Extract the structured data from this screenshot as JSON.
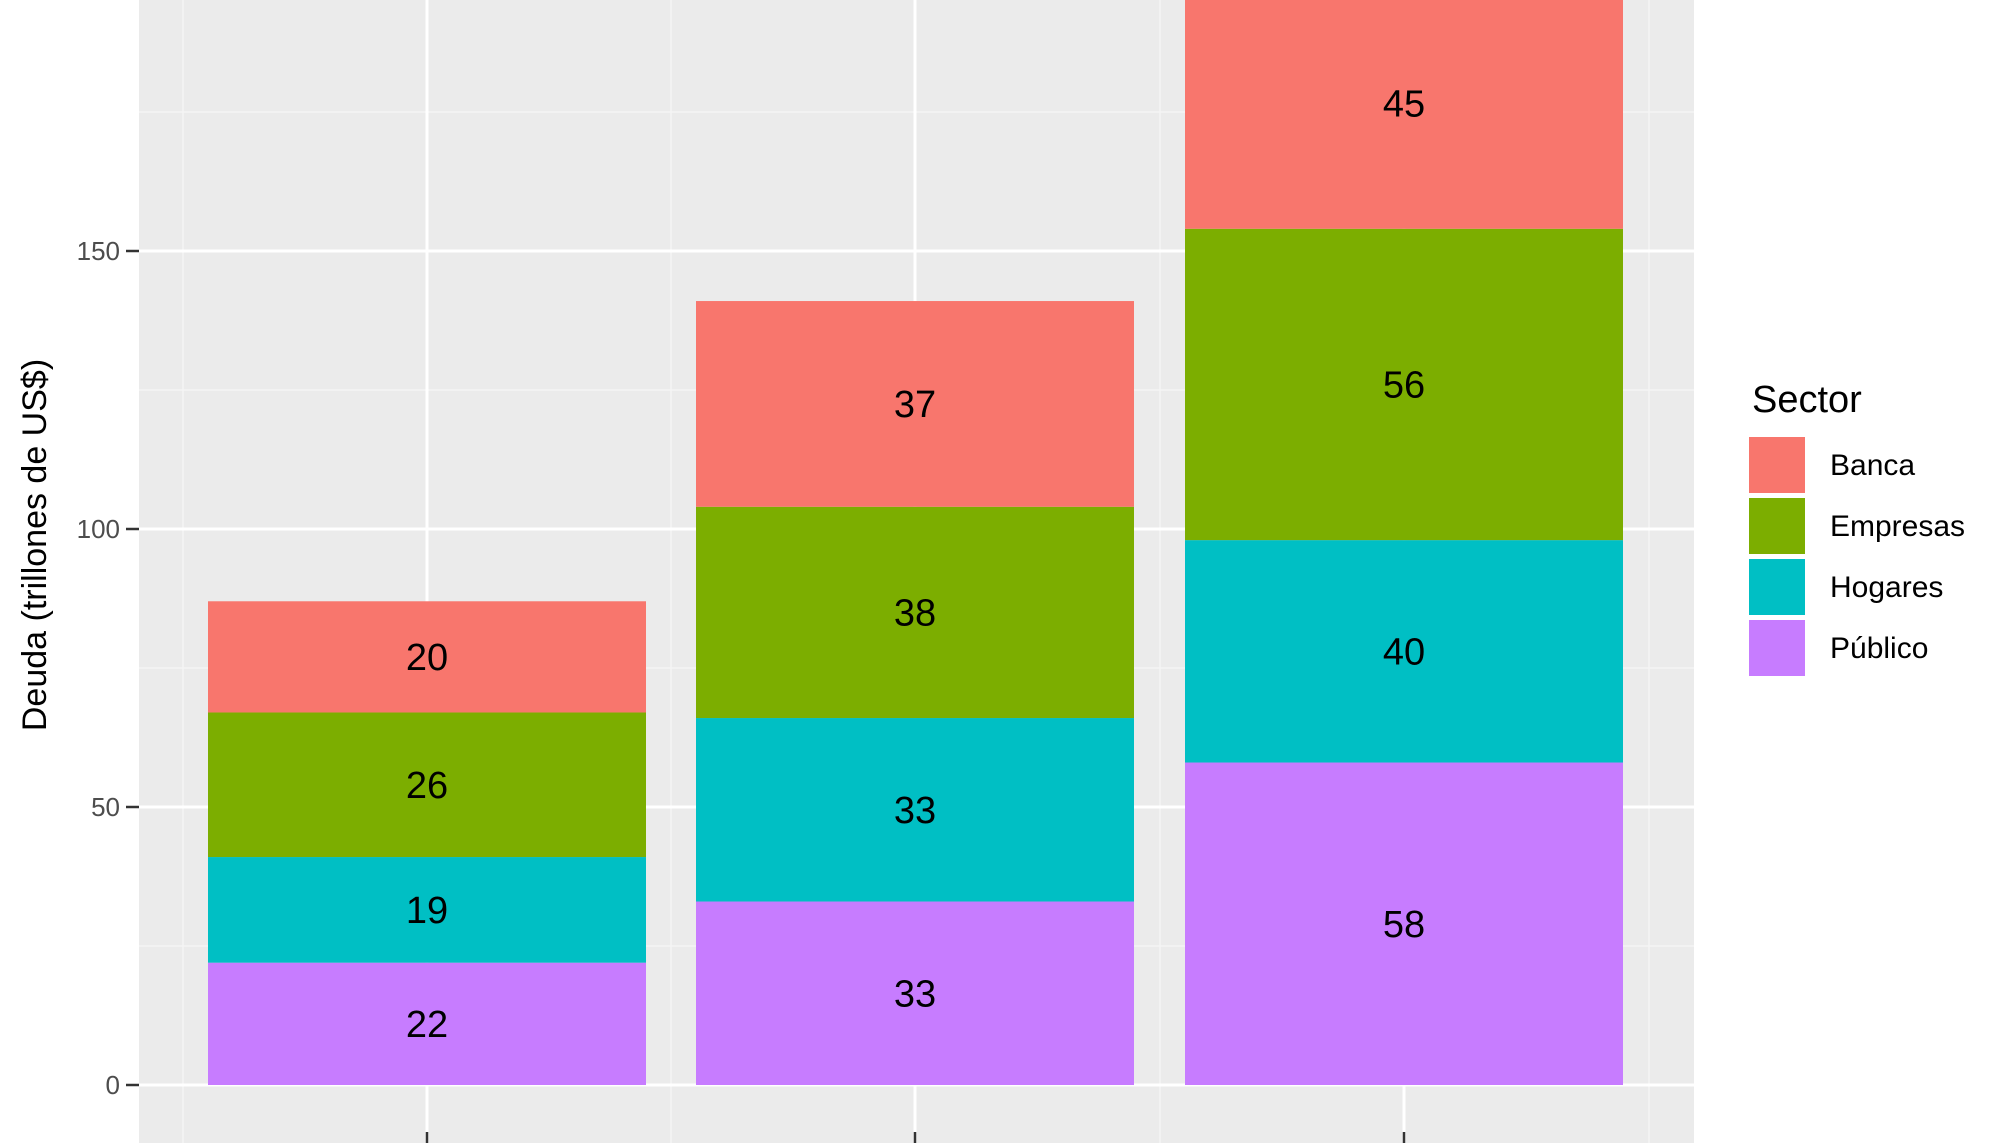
{
  "chart_data": {
    "type": "bar",
    "stacked": true,
    "categories": [
      "",
      "",
      ""
    ],
    "series": [
      {
        "name": "Público",
        "values": [
          22,
          33,
          58
        ],
        "color": "#C77CFF"
      },
      {
        "name": "Hogares",
        "values": [
          19,
          33,
          40
        ],
        "color": "#00BFC4"
      },
      {
        "name": "Empresas",
        "values": [
          26,
          38,
          56
        ],
        "color": "#7CAE00"
      },
      {
        "name": "Banca",
        "values": [
          20,
          37,
          45
        ],
        "color": "#F8766D"
      }
    ],
    "ylabel": "Deuda (trillones de US$)",
    "xlabel": "",
    "yticks": [
      0,
      50,
      100,
      150
    ],
    "legend": {
      "title": "Sector",
      "position": "right",
      "order": [
        "Banca",
        "Empresas",
        "Hogares",
        "Público"
      ]
    },
    "grid": true,
    "panel_background": "#EBEBEB"
  }
}
